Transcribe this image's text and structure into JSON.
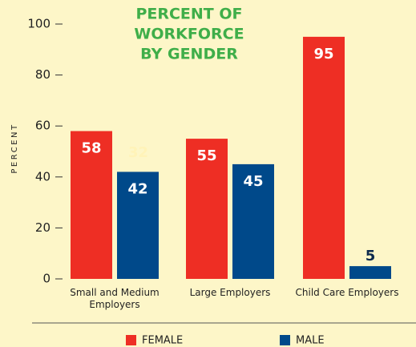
{
  "chart_data": {
    "type": "bar",
    "title": [
      "PERCENT OF",
      "WORKFORCE",
      "BY GENDER"
    ],
    "y_label": "PERCENT",
    "categories": [
      "Small and Medium Employers",
      "Large Employers",
      "Child Care Employers"
    ],
    "series": [
      {
        "name": "FEMALE",
        "color": "#ee2e24",
        "values": [
          58,
          55,
          95
        ]
      },
      {
        "name": "MALE",
        "color": "#00498a",
        "values": [
          42,
          45,
          5
        ]
      }
    ],
    "annotations": [
      "32"
    ],
    "ylim": [
      0,
      100
    ],
    "yticks": [
      0,
      20,
      40,
      60,
      80,
      100
    ]
  }
}
